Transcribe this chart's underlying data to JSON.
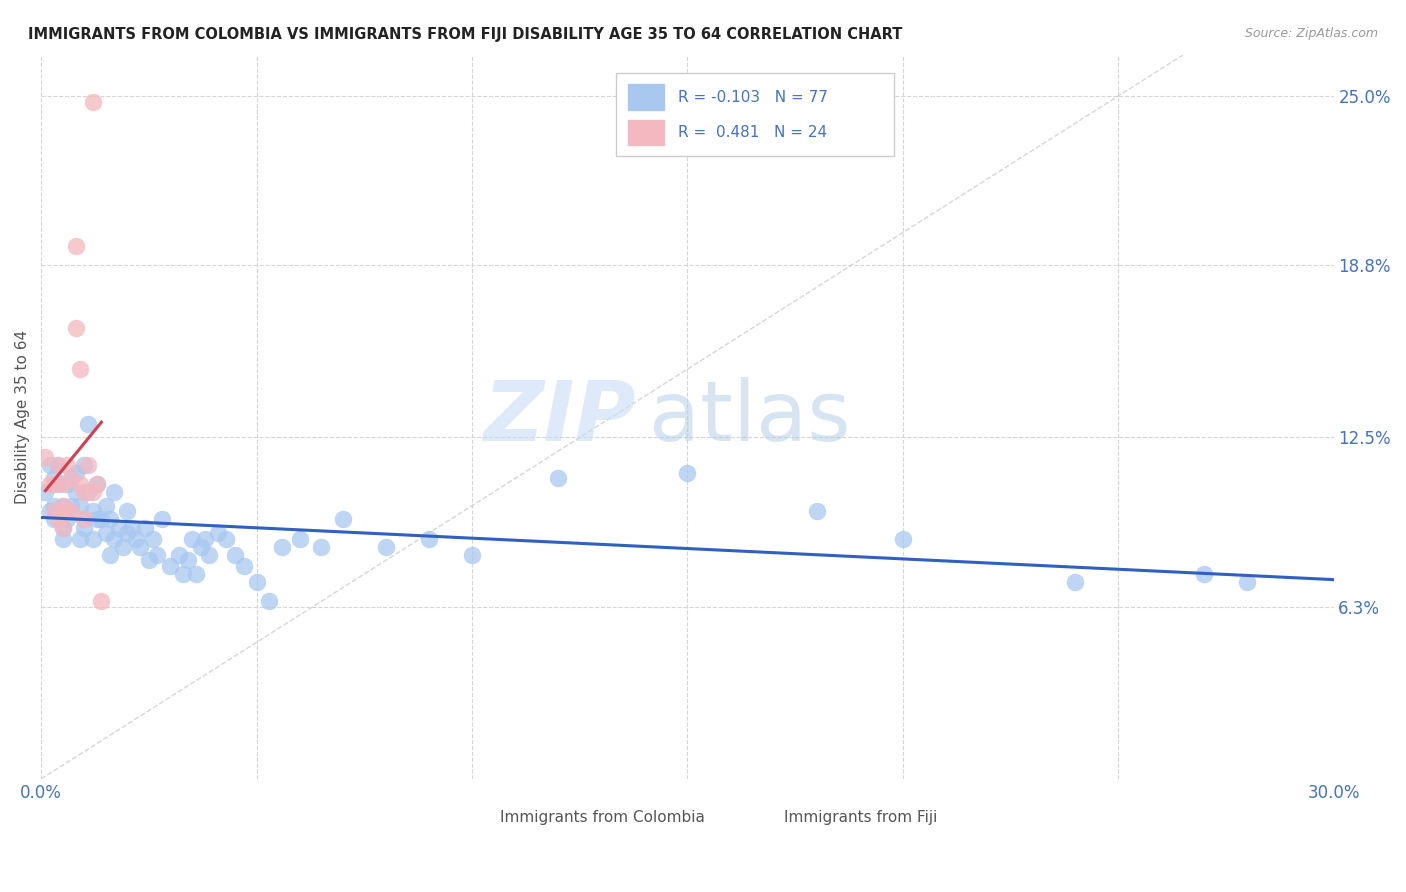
{
  "title": "IMMIGRANTS FROM COLOMBIA VS IMMIGRANTS FROM FIJI DISABILITY AGE 35 TO 64 CORRELATION CHART",
  "source": "Source: ZipAtlas.com",
  "ylabel": "Disability Age 35 to 64",
  "xlim": [
    0.0,
    0.3
  ],
  "ylim": [
    0.0,
    0.265
  ],
  "xtick_positions": [
    0.0,
    0.3
  ],
  "xtick_labels": [
    "0.0%",
    "30.0%"
  ],
  "ytick_values": [
    0.063,
    0.125,
    0.188,
    0.25
  ],
  "ytick_labels": [
    "6.3%",
    "12.5%",
    "18.8%",
    "25.0%"
  ],
  "legend1_label": "Immigrants from Colombia",
  "legend2_label": "Immigrants from Fiji",
  "R_colombia": -0.103,
  "N_colombia": 77,
  "R_fiji": 0.481,
  "N_fiji": 24,
  "color_colombia": "#a8c8f0",
  "color_fiji": "#f4b8c0",
  "trendline_colombia_color": "#3060c0",
  "trendline_fiji_color": "#d04050",
  "diagonal_color": "#cccccc",
  "watermark_zip": "ZIP",
  "watermark_atlas": "atlas",
  "colombia_x": [
    0.001,
    0.002,
    0.002,
    0.003,
    0.003,
    0.003,
    0.004,
    0.004,
    0.005,
    0.005,
    0.005,
    0.006,
    0.006,
    0.006,
    0.007,
    0.007,
    0.008,
    0.008,
    0.009,
    0.009,
    0.01,
    0.01,
    0.01,
    0.011,
    0.011,
    0.012,
    0.012,
    0.013,
    0.013,
    0.014,
    0.015,
    0.015,
    0.016,
    0.016,
    0.017,
    0.017,
    0.018,
    0.019,
    0.02,
    0.02,
    0.021,
    0.022,
    0.023,
    0.024,
    0.025,
    0.026,
    0.027,
    0.028,
    0.03,
    0.032,
    0.033,
    0.034,
    0.035,
    0.036,
    0.037,
    0.038,
    0.039,
    0.041,
    0.043,
    0.045,
    0.047,
    0.05,
    0.053,
    0.056,
    0.06,
    0.065,
    0.07,
    0.08,
    0.09,
    0.1,
    0.12,
    0.15,
    0.18,
    0.2,
    0.24,
    0.27,
    0.28
  ],
  "colombia_y": [
    0.105,
    0.098,
    0.115,
    0.11,
    0.1,
    0.095,
    0.108,
    0.115,
    0.1,
    0.092,
    0.088,
    0.098,
    0.108,
    0.095,
    0.11,
    0.1,
    0.112,
    0.105,
    0.1,
    0.088,
    0.095,
    0.092,
    0.115,
    0.105,
    0.13,
    0.098,
    0.088,
    0.095,
    0.108,
    0.095,
    0.1,
    0.09,
    0.082,
    0.095,
    0.088,
    0.105,
    0.092,
    0.085,
    0.09,
    0.098,
    0.092,
    0.088,
    0.085,
    0.092,
    0.08,
    0.088,
    0.082,
    0.095,
    0.078,
    0.082,
    0.075,
    0.08,
    0.088,
    0.075,
    0.085,
    0.088,
    0.082,
    0.09,
    0.088,
    0.082,
    0.078,
    0.072,
    0.065,
    0.085,
    0.088,
    0.085,
    0.095,
    0.085,
    0.088,
    0.082,
    0.11,
    0.112,
    0.098,
    0.088,
    0.072,
    0.075,
    0.072
  ],
  "fiji_x": [
    0.001,
    0.002,
    0.003,
    0.003,
    0.004,
    0.004,
    0.005,
    0.005,
    0.005,
    0.006,
    0.006,
    0.007,
    0.007,
    0.008,
    0.008,
    0.009,
    0.009,
    0.01,
    0.01,
    0.011,
    0.012,
    0.012,
    0.013,
    0.014
  ],
  "fiji_y": [
    0.118,
    0.108,
    0.108,
    0.098,
    0.115,
    0.095,
    0.108,
    0.1,
    0.092,
    0.098,
    0.115,
    0.11,
    0.098,
    0.195,
    0.165,
    0.15,
    0.108,
    0.105,
    0.095,
    0.115,
    0.248,
    0.105,
    0.108,
    0.065
  ]
}
